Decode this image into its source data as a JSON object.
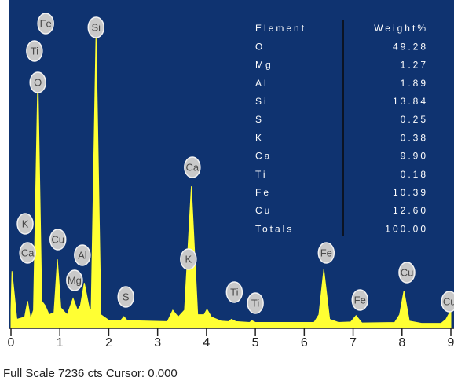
{
  "chart_data": {
    "type": "area",
    "color": "#ffff33",
    "background": "#0f3370",
    "footer": "Full Scale 7236 cts Cursor: 0.000",
    "xlim": [
      0,
      9
    ],
    "ylim": [
      0,
      7236
    ],
    "xticks": [
      0,
      1,
      2,
      3,
      4,
      5,
      6,
      7,
      8,
      9
    ],
    "x": [
      0,
      0.02,
      0.12,
      0.28,
      0.34,
      0.4,
      0.46,
      0.55,
      0.63,
      0.7,
      0.78,
      0.88,
      0.95,
      1.02,
      1.15,
      1.27,
      1.36,
      1.42,
      1.5,
      1.6,
      1.64,
      1.74,
      1.84,
      2.0,
      2.25,
      2.31,
      2.38,
      3.2,
      3.31,
      3.42,
      3.55,
      3.69,
      3.82,
      3.95,
      4.01,
      4.1,
      4.3,
      4.45,
      4.51,
      4.6,
      4.88,
      4.93,
      5.0,
      6.2,
      6.3,
      6.4,
      6.52,
      6.7,
      6.95,
      7.06,
      7.18,
      7.85,
      7.95,
      8.04,
      8.15,
      8.4,
      8.8,
      8.9,
      9.0
    ],
    "values": [
      400,
      1260,
      200,
      250,
      600,
      200,
      400,
      5590,
      600,
      500,
      300,
      350,
      1520,
      450,
      300,
      660,
      400,
      500,
      1000,
      450,
      400,
      6540,
      300,
      180,
      180,
      260,
      170,
      150,
      400,
      250,
      400,
      3130,
      300,
      300,
      420,
      250,
      160,
      150,
      200,
      150,
      130,
      170,
      130,
      130,
      300,
      1300,
      200,
      130,
      140,
      280,
      120,
      130,
      300,
      830,
      160,
      110,
      110,
      200,
      400
    ],
    "annotations": [
      {
        "text": "Fe",
        "x": 0.71,
        "y": 6717
      },
      {
        "text": "Ti",
        "x": 0.48,
        "y": 6111
      },
      {
        "text": "O",
        "x": 0.55,
        "y": 5418
      },
      {
        "text": "Si",
        "x": 1.74,
        "y": 6630
      },
      {
        "text": "Ca",
        "x": 3.71,
        "y": 3549
      },
      {
        "text": "K",
        "x": 0.29,
        "y": 2302
      },
      {
        "text": "Ca",
        "x": 0.34,
        "y": 1662
      },
      {
        "text": "Cu",
        "x": 0.96,
        "y": 1956
      },
      {
        "text": "Al",
        "x": 1.46,
        "y": 1610
      },
      {
        "text": "Mg",
        "x": 1.3,
        "y": 1056
      },
      {
        "text": "K",
        "x": 3.63,
        "y": 1523
      },
      {
        "text": "S",
        "x": 2.35,
        "y": 692
      },
      {
        "text": "Ti",
        "x": 4.57,
        "y": 796
      },
      {
        "text": "Ti",
        "x": 5.0,
        "y": 554
      },
      {
        "text": "Fe",
        "x": 6.45,
        "y": 1662
      },
      {
        "text": "Fe",
        "x": 7.14,
        "y": 623
      },
      {
        "text": "Cu",
        "x": 8.1,
        "y": 1229
      },
      {
        "text": "Cu",
        "x": 8.97,
        "y": 589
      }
    ],
    "table": {
      "columns": [
        "Element",
        "Weight%"
      ],
      "elements": [
        "O",
        "Mg",
        "Al",
        "Si",
        "S",
        "K",
        "Ca",
        "Ti",
        "Fe",
        "Cu",
        "Totals"
      ],
      "values": [
        49.28,
        1.27,
        1.89,
        13.84,
        0.25,
        0.38,
        9.9,
        0.18,
        10.39,
        12.6,
        100
      ],
      "value_labels": [
        "49.28",
        "1.27",
        "1.89",
        "13.84",
        "0.25",
        "0.38",
        "9.90",
        "0.18",
        "10.39",
        "12.60",
        "100.00"
      ]
    }
  }
}
